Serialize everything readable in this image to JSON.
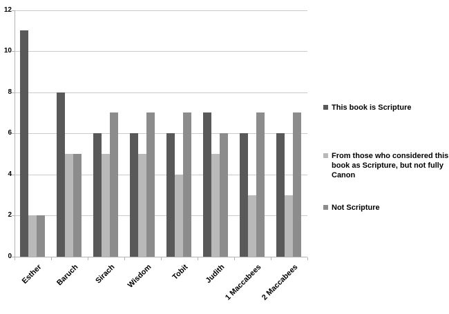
{
  "chart_data": {
    "type": "bar",
    "categories": [
      "Esther",
      "Baruch",
      "Sirach",
      "Wisdom",
      "Tobit",
      "Judith",
      "1 Maccabees",
      "2 Maccabees"
    ],
    "series": [
      {
        "name": "This book is Scripture",
        "color": "#595959",
        "values": [
          11,
          8,
          6,
          6,
          6,
          7,
          6,
          6
        ]
      },
      {
        "name": "From those who considered this book as Scripture, but not fully Canon",
        "color": "#b9b9b9",
        "values": [
          2,
          5,
          5,
          5,
          4,
          5,
          3,
          3
        ]
      },
      {
        "name": "Not Scripture",
        "color": "#8c8c8c",
        "values": [
          2,
          5,
          7,
          7,
          7,
          6,
          7,
          7
        ]
      }
    ],
    "title": "",
    "xlabel": "",
    "ylabel": "",
    "ylim": [
      0,
      12
    ],
    "ytick_step": 2,
    "grid": true,
    "legend_position": "right"
  },
  "axes": {
    "y_tick_labels": [
      "0",
      "2",
      "4",
      "6",
      "8",
      "10",
      "12"
    ]
  },
  "legend": {
    "items": [
      {
        "series_index": 0,
        "lines": [
          "This book is Scripture"
        ]
      },
      {
        "series_index": 1,
        "lines": [
          "From those who considered this",
          "book as Scripture, but not fully",
          "Canon"
        ]
      },
      {
        "series_index": 2,
        "lines": [
          "Not Scripture"
        ]
      }
    ]
  },
  "colors": {
    "background": "#ffffff",
    "gridline": "#c9c9c9",
    "axis": "#b3b3b3",
    "label_text": "#000000"
  }
}
